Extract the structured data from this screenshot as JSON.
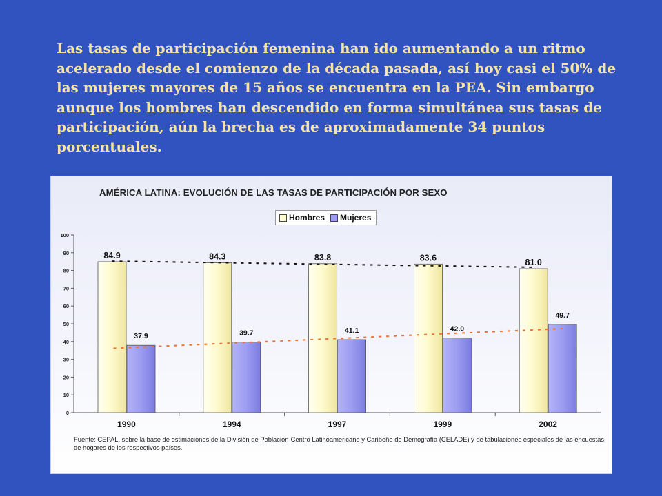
{
  "intro": {
    "text": "Las tasas de participación femenina han ido aumentando a un ritmo acelerado desde el comienzo de la década pasada, así hoy casi el 50% de las mujeres mayores de 15 años se encuentra en la PEA. Sin embargo aunque los hombres han descendido en forma simultánea sus tasas de participación, aún la brecha es de aproximadamente  34 puntos porcentuales."
  },
  "chart_data": {
    "type": "bar",
    "title": "AMÉRICA LATINA: EVOLUCIÓN DE LAS TASAS DE PARTICIPACIÓN POR SEXO",
    "categories": [
      "1990",
      "1994",
      "1997",
      "1999",
      "2002"
    ],
    "series": [
      {
        "name": "Hombres",
        "values": [
          84.9,
          84.3,
          83.8,
          83.6,
          81.0
        ],
        "labels": [
          "84.9",
          "84.3",
          "83.8",
          "83.6",
          "81.0"
        ],
        "color": "#fffbd0",
        "trendline_color": "#111111"
      },
      {
        "name": "Mujeres",
        "values": [
          37.9,
          39.7,
          41.1,
          42.0,
          49.7
        ],
        "labels": [
          "37.9",
          "39.7",
          "41.1",
          "42.0",
          "49.7"
        ],
        "color": "#9c9cf2",
        "trendline_color": "#f07030"
      }
    ],
    "ylim": [
      0,
      100
    ],
    "yticks": [
      0,
      10,
      20,
      30,
      40,
      50,
      60,
      70,
      80,
      90,
      100
    ],
    "grid": false,
    "legend": "top-center",
    "trendlines": true,
    "xlabel": "",
    "ylabel": ""
  },
  "source_note": "Fuente: CEPAL, sobre la base de estimaciones de la División de Población-Centro Latinoamericano y Caribeño de Demografía (CELADE) y de tabulaciones especiales de las encuestas de hogares de los respectivos países."
}
